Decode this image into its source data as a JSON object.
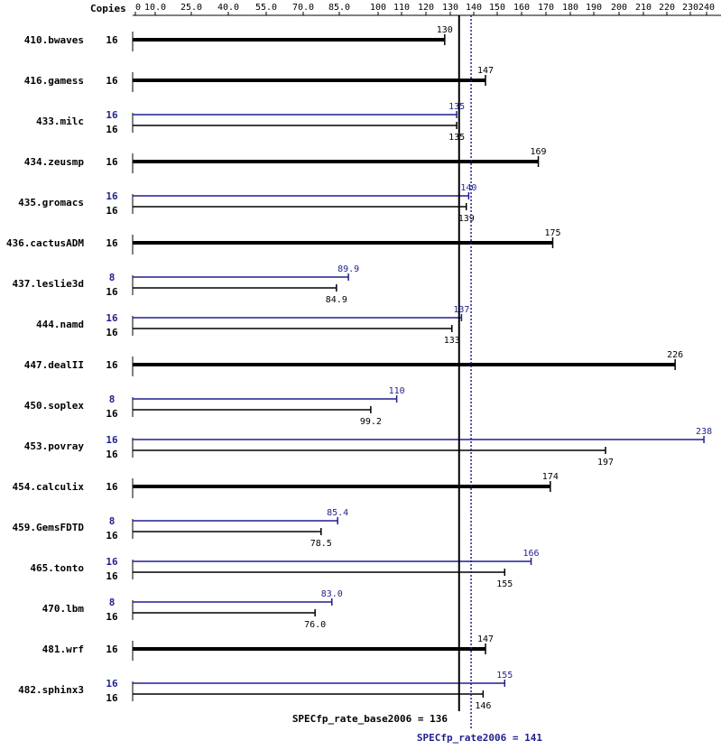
{
  "chart_data": {
    "type": "bar",
    "orientation": "horizontal",
    "header_label": "Copies",
    "xlim": [
      0,
      240
    ],
    "tick_labels": [
      "0",
      "10.0",
      "25.0",
      "40.0",
      "55.0",
      "70.0",
      "85.0",
      "100",
      "110",
      "120",
      "130",
      "140",
      "150",
      "160",
      "170",
      "180",
      "190",
      "200",
      "210",
      "220",
      "230",
      "240"
    ],
    "colors": {
      "base": "#000000",
      "peak": "#1f1f8f"
    },
    "benchmarks": [
      {
        "name": "410.bwaves",
        "base_copies": "16",
        "base": 130,
        "base_label": "130"
      },
      {
        "name": "416.gamess",
        "base_copies": "16",
        "base": 147,
        "base_label": "147"
      },
      {
        "name": "433.milc",
        "peak_copies": "16",
        "peak": 135,
        "peak_label": "135",
        "base_copies": "16",
        "base": 135,
        "base_label": "135"
      },
      {
        "name": "434.zeusmp",
        "base_copies": "16",
        "base": 169,
        "base_label": "169"
      },
      {
        "name": "435.gromacs",
        "peak_copies": "16",
        "peak": 140,
        "peak_label": "140",
        "base_copies": "16",
        "base": 139,
        "base_label": "139"
      },
      {
        "name": "436.cactusADM",
        "base_copies": "16",
        "base": 175,
        "base_label": "175"
      },
      {
        "name": "437.leslie3d",
        "peak_copies": "8",
        "peak": 89.9,
        "peak_label": "89.9",
        "base_copies": "16",
        "base": 84.9,
        "base_label": "84.9"
      },
      {
        "name": "444.namd",
        "peak_copies": "16",
        "peak": 137,
        "peak_label": "137",
        "base_copies": "16",
        "base": 133,
        "base_label": "133"
      },
      {
        "name": "447.dealII",
        "base_copies": "16",
        "base": 226,
        "base_label": "226"
      },
      {
        "name": "450.soplex",
        "peak_copies": "8",
        "peak": 110,
        "peak_label": "110",
        "base_copies": "16",
        "base": 99.2,
        "base_label": "99.2"
      },
      {
        "name": "453.povray",
        "peak_copies": "16",
        "peak": 238,
        "peak_label": "238",
        "base_copies": "16",
        "base": 197,
        "base_label": "197"
      },
      {
        "name": "454.calculix",
        "base_copies": "16",
        "base": 174,
        "base_label": "174"
      },
      {
        "name": "459.GemsFDTD",
        "peak_copies": "8",
        "peak": 85.4,
        "peak_label": "85.4",
        "base_copies": "16",
        "base": 78.5,
        "base_label": "78.5"
      },
      {
        "name": "465.tonto",
        "peak_copies": "16",
        "peak": 166,
        "peak_label": "166",
        "base_copies": "16",
        "base": 155,
        "base_label": "155"
      },
      {
        "name": "470.lbm",
        "peak_copies": "8",
        "peak": 83.0,
        "peak_label": "83.0",
        "base_copies": "16",
        "base": 76.0,
        "base_label": "76.0"
      },
      {
        "name": "481.wrf",
        "base_copies": "16",
        "base": 147,
        "base_label": "147"
      },
      {
        "name": "482.sphinx3",
        "peak_copies": "16",
        "peak": 155,
        "peak_label": "155",
        "base_copies": "16",
        "base": 146,
        "base_label": "146"
      }
    ],
    "reference_lines": {
      "base": {
        "value": 136,
        "label": "SPECfp_rate_base2006 = 136"
      },
      "peak": {
        "value": 141,
        "label": "SPECfp_rate2006 = 141"
      }
    }
  }
}
